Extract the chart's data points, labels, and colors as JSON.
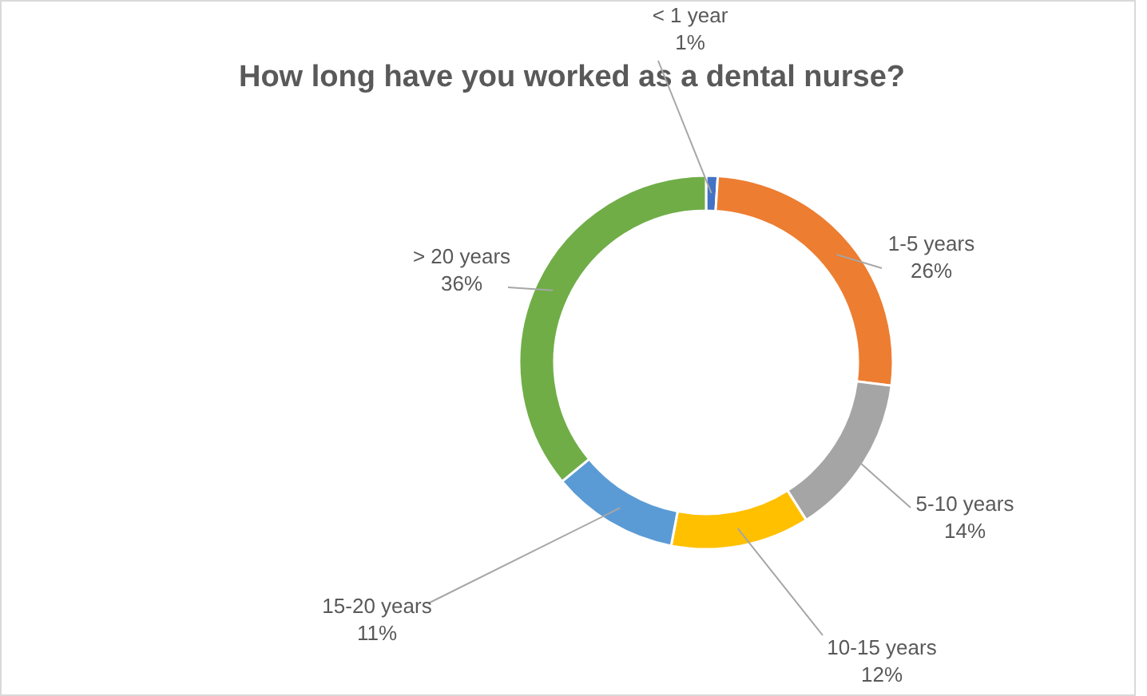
{
  "chart_data": {
    "type": "donut",
    "title": "How long have you worked as a dental nurse?",
    "categories": [
      "< 1 year",
      "1-5 years",
      "5-10 years",
      "10-15 years",
      "15-20 years",
      "> 20 years"
    ],
    "values": [
      1,
      26,
      14,
      12,
      11,
      36
    ],
    "value_labels": [
      "1%",
      "26%",
      "14%",
      "12%",
      "11%",
      "36%"
    ],
    "colors": [
      "#4472c4",
      "#ed7d31",
      "#a5a5a5",
      "#ffc000",
      "#5b9bd5",
      "#70ad47"
    ]
  }
}
